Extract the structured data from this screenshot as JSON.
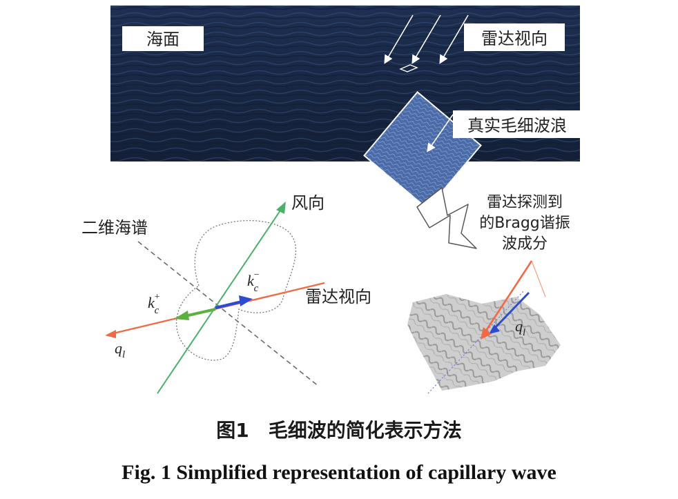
{
  "labels": {
    "sea_surface": "海面",
    "radar_view_top": "雷达视向",
    "real_capillary": "真实毛细波浪",
    "wind_direction": "风向",
    "spectrum_2d": "二维海谱",
    "radar_view_mid": "雷达视向",
    "bragg_line1": "雷达探测到",
    "bragg_line2": "的Bragg谐振",
    "bragg_line3": "波成分",
    "kc_plus_k": "k",
    "kc_plus_sup": "+",
    "kc_plus_sub": "c",
    "kc_minus_k": "k",
    "kc_minus_sup": "−",
    "kc_minus_sub": "c",
    "ql_left_q": "q",
    "ql_left_sub": "l",
    "ql_right_q": "q",
    "ql_right_sub": "l"
  },
  "caption": {
    "cn": "图1　毛细波的简化表示方法",
    "en": "Fig. 1    Simplified representation of capillary wave"
  },
  "colors": {
    "sea_dark": "#1a2a4a",
    "patch_blue": "#4a6aa8",
    "wind_green": "#4caf6a",
    "radar_orange": "#f26a44",
    "kc_plus_green": "#5cb040",
    "kc_minus_blue": "#2c4bd0",
    "dashed_gray": "#6a6a6a"
  },
  "icons": {
    "arrow_glyph": "outline-zigzag-arrow-icon"
  }
}
